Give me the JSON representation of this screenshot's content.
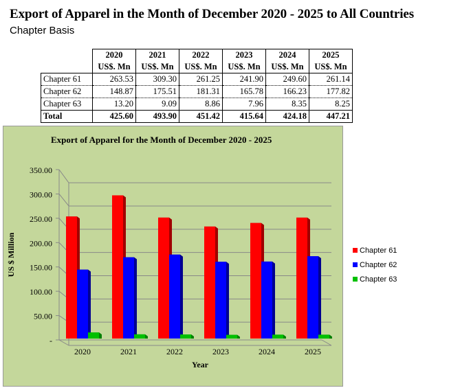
{
  "document": {
    "title": "Export of Apparel in the Month of December 2020 - 2025 to All Countries",
    "subtitle": "Chapter Basis"
  },
  "table": {
    "years": [
      "2020",
      "2021",
      "2022",
      "2023",
      "2024",
      "2025"
    ],
    "unit": "US$. Mn",
    "rows": [
      {
        "label": "Chapter 61",
        "values": [
          "263.53",
          "309.30",
          "261.25",
          "241.90",
          "249.60",
          "261.14"
        ]
      },
      {
        "label": "Chapter 62",
        "values": [
          "148.87",
          "175.51",
          "181.31",
          "165.78",
          "166.23",
          "177.82"
        ]
      },
      {
        "label": "Chapter 63",
        "values": [
          "13.20",
          "9.09",
          "8.86",
          "7.96",
          "8.35",
          "8.25"
        ]
      }
    ],
    "total": {
      "label": "Total",
      "values": [
        "425.60",
        "493.90",
        "451.42",
        "415.64",
        "424.18",
        "447.21"
      ]
    }
  },
  "chart_data": {
    "type": "bar",
    "title": "Export of Apparel for the Month of December 2020 - 2025",
    "xlabel": "Year",
    "ylabel": "US $ Million",
    "categories": [
      "2020",
      "2021",
      "2022",
      "2023",
      "2024",
      "2025"
    ],
    "ylim": [
      0,
      350
    ],
    "yticks": [
      "-",
      "50.00",
      "100.00",
      "150.00",
      "200.00",
      "250.00",
      "300.00",
      "350.00"
    ],
    "grid": true,
    "legend": "right",
    "background": "#c4d79b",
    "series": [
      {
        "name": "Chapter 61",
        "color": "#ff0000",
        "values": [
          263.53,
          309.3,
          261.25,
          241.9,
          249.6,
          261.14
        ]
      },
      {
        "name": "Chapter 62",
        "color": "#0000ff",
        "values": [
          148.87,
          175.51,
          181.31,
          165.78,
          166.23,
          177.82
        ]
      },
      {
        "name": "Chapter 63",
        "color": "#00c000",
        "values": [
          13.2,
          9.09,
          8.86,
          7.96,
          8.35,
          8.25
        ]
      }
    ]
  }
}
